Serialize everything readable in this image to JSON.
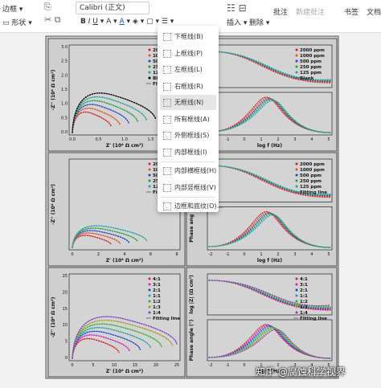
{
  "toolbar": {
    "left": [
      "边框",
      "形状"
    ],
    "font": "Calibri (正文)",
    "insert": "插入",
    "delete": "删除",
    "ribbon": [
      "批注",
      "新建批注",
      "书签",
      "文档部件"
    ]
  },
  "menu": {
    "items": [
      "下框线(B)",
      "上框线(P)",
      "左框线(L)",
      "右框线(R)",
      "无框线(N)",
      "所有框线(A)",
      "外侧框线(S)",
      "内部框线(I)",
      "内部横框线(H)",
      "内部竖框线(V)",
      "边框和底纹(O)..."
    ]
  },
  "figure": {
    "panels": [
      {
        "legend": [
          "20",
          "10",
          "50",
          "25",
          "12",
          "Bl",
          "Fittin"
        ],
        "xlabel": "Z' (10⁴ Ω cm²)",
        "ylabel": "-Z'' (10⁴ Ω cm²)",
        "xticks": [
          "0.0",
          "0.5",
          "1.0",
          "1.5",
          "2.0"
        ],
        "yticks": [
          "0.0",
          "0.5",
          "1.0",
          "1.5",
          "2.0",
          "2.5",
          "3.0"
        ]
      },
      {
        "legend": [
          "2000 ppm",
          "1000 ppm",
          "500 ppm",
          "250 ppm",
          "125 ppm",
          "Blank"
        ],
        "xlabel": "log f (Hz)",
        "xticks": [
          "-2",
          "-1",
          "0",
          "1",
          "2",
          "3",
          "4",
          "5"
        ]
      },
      {
        "legend": [
          "20",
          "10",
          "50",
          "25",
          "12",
          "Fitting"
        ],
        "xlabel": "Z' (10⁴ Ω cm²)",
        "ylabel": "-Z'' (10⁴ Ω cm²)",
        "xticks": [
          "0",
          "2",
          "4",
          "6",
          "8"
        ]
      },
      {
        "legend": [
          "2000 ppm",
          "1000 ppm",
          "500 ppm",
          "250 ppm",
          "125 ppm",
          "Fitting line"
        ],
        "xlabel": "log f (Hz)",
        "ylabel": "Phase ang",
        "xticks": [
          "-2",
          "-1",
          "0",
          "1",
          "2",
          "3",
          "4",
          "5"
        ]
      },
      {
        "legend": [
          "4:1",
          "3:1",
          "2:1",
          "1:1",
          "1:2",
          "1:3",
          "1:4",
          "Fitting line"
        ],
        "xlabel": "Z' (10⁴ Ω cm²)",
        "ylabel": "-Z'' (10⁴ Ω cm²)",
        "xticks": [
          "0",
          "5",
          "10",
          "15",
          "20",
          "25"
        ],
        "yticks": [
          "0",
          "5",
          "10",
          "15",
          "20",
          "25"
        ]
      },
      {
        "legend": [
          "4:1",
          "3:1",
          "2:1",
          "1:1",
          "1:2",
          "1:3",
          "1:4",
          "Fitting line"
        ],
        "xlabel": "log f (Hz)",
        "ylabel": "log |Z| (Ω cm²)",
        "ylabel2": "Phase angle (°)",
        "xticks": [
          "-2",
          "-1",
          "0",
          "1",
          "2",
          "3",
          "4",
          "5"
        ]
      }
    ]
  },
  "watermark": "知乎 @腐蚀科学视界"
}
